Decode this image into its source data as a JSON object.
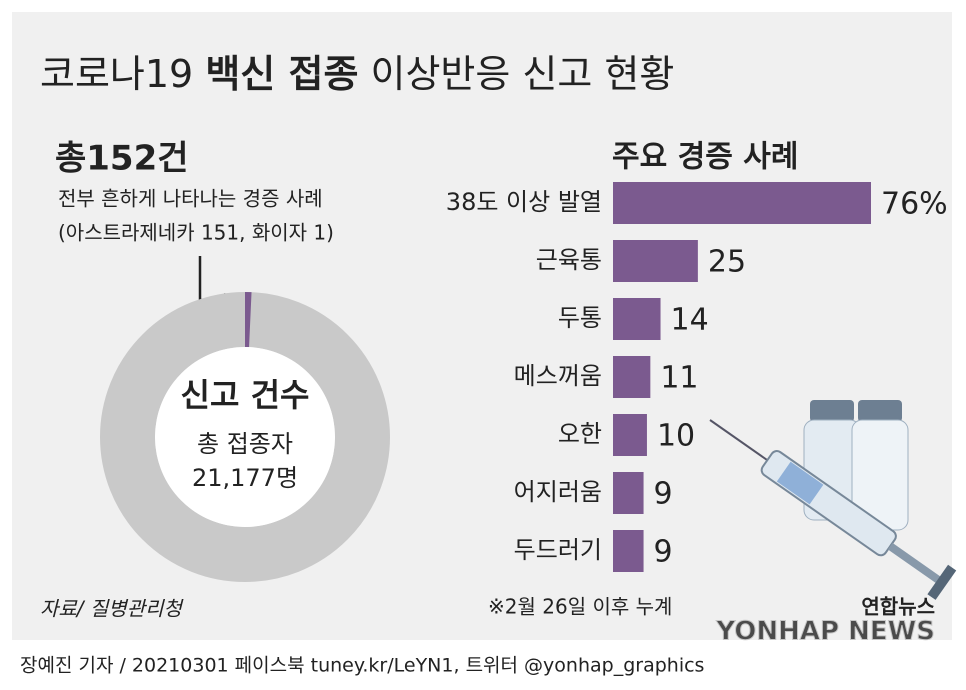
{
  "title_parts": [
    {
      "text": "코로나19 ",
      "bold": false
    },
    {
      "text": "백신 접종",
      "bold": true
    },
    {
      "text": " 이상반응 신고 현황",
      "bold": false
    }
  ],
  "chart_data": [
    {
      "type": "donut",
      "title": "신고 건수",
      "subtitle": [
        "전부 흔하게 나타나는 경증 사례",
        "(아스트라제네카 151, 화이자 1)"
      ],
      "values": [
        152
      ],
      "value_labels": [
        "총152건"
      ],
      "total_title": "총 접종자",
      "total": 21177,
      "total_label": "21,177명",
      "colors": [
        "#7b5a8f",
        "#c9c9c9"
      ]
    },
    {
      "type": "bar",
      "title": "주요 경증 사례",
      "categories": [
        "38도 이상 발열",
        "근육통",
        "두통",
        "메스꺼움",
        "오한",
        "어지러움",
        "두드러기"
      ],
      "values": [
        76,
        25,
        14,
        11,
        10,
        9,
        9
      ],
      "value_labels": [
        "76%",
        "25",
        "14",
        "11",
        "10",
        "9",
        "9"
      ],
      "color": "#7b5a8f",
      "note": "※2월 26일 이후 누계"
    }
  ],
  "source": "자료/ 질병관리청",
  "logo": "연합뉴스",
  "watermark": "YONHAP NEWS",
  "footer": "장예진 기자 / 20210301 페이스북 tuney.kr/LeYN1, 트위터 @yonhap_graphics"
}
